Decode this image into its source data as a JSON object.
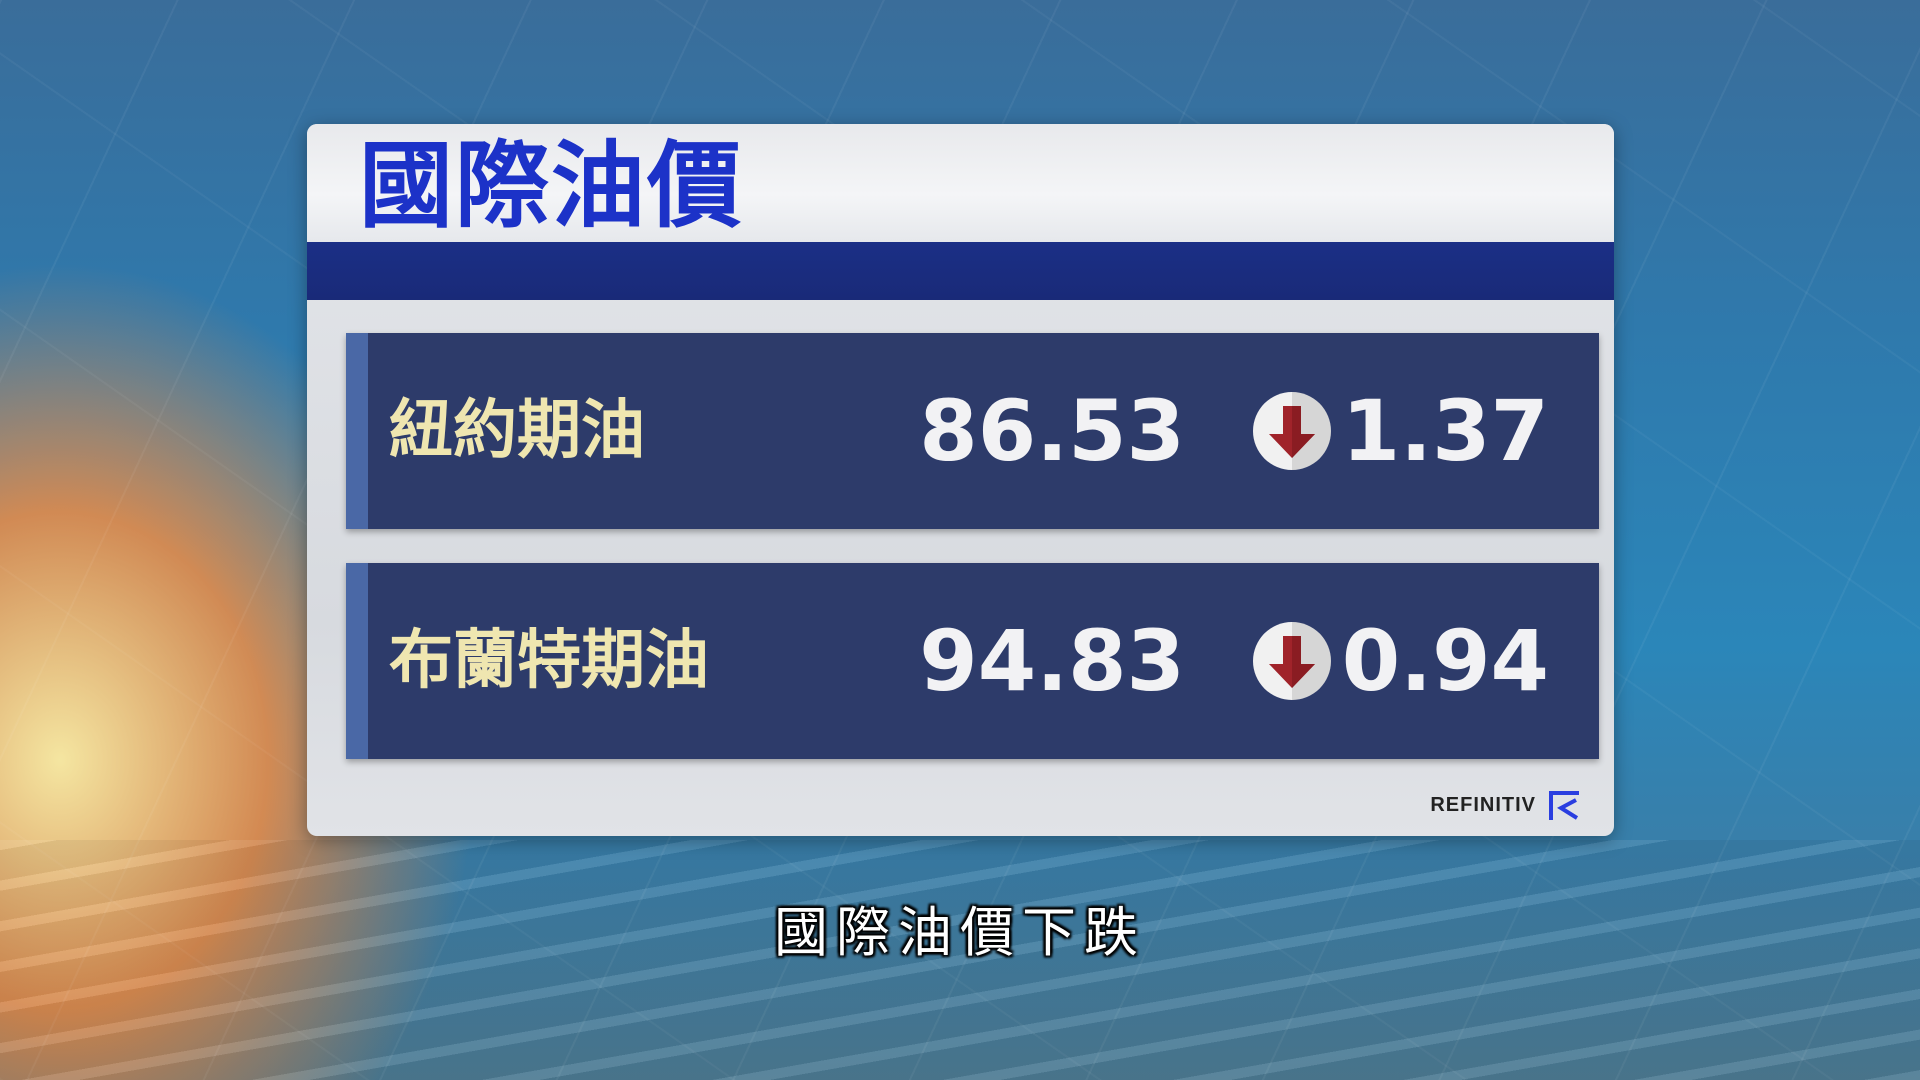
{
  "title": "國際油價",
  "rows": [
    {
      "label": "紐約期油",
      "price": "86.53",
      "direction": "down",
      "change": "1.37"
    },
    {
      "label": "布蘭特期油",
      "price": "94.83",
      "direction": "down",
      "change": "0.94"
    }
  ],
  "logo": "REFINITIV",
  "subtitle": "國際油價下跌",
  "colors": {
    "title": "#1c32c8",
    "band": "#1b2f86",
    "row": "#2d3b6a",
    "arrow": "#a0232a",
    "label": "#efe6b0"
  }
}
